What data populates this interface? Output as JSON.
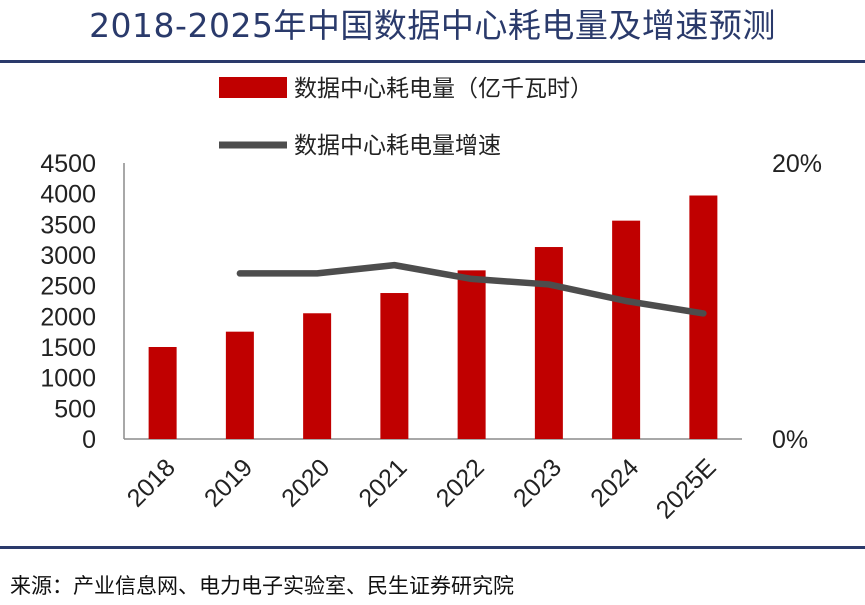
{
  "page": {
    "title": "2018-2025年中国数据中心耗电量及增速预测",
    "source": "来源：产业信息网、电力电子实验室、民生证券研究院"
  },
  "chart_data": {
    "type": "bar",
    "categories": [
      "2018",
      "2019",
      "2020",
      "2021",
      "2022",
      "2023",
      "2024",
      "2025E"
    ],
    "series": [
      {
        "name": "数据中心耗电量（亿千瓦时）",
        "type": "bar",
        "axis": "left",
        "color": "#c00000",
        "values": [
          1500,
          1750,
          2050,
          2380,
          2750,
          3130,
          3560,
          3970
        ]
      },
      {
        "name": "数据中心耗电量增速",
        "type": "line",
        "axis": "right",
        "color": "#4d4d4d",
        "values": [
          null,
          12.0,
          12.0,
          12.6,
          11.6,
          11.2,
          10.0,
          9.1
        ]
      }
    ],
    "left_axis": {
      "ylim": [
        0,
        4500
      ],
      "ticks": [
        "0",
        "500",
        "1000",
        "1500",
        "2000",
        "2500",
        "3000",
        "3500",
        "4000",
        "4500"
      ]
    },
    "right_axis": {
      "ylim": [
        0,
        20
      ],
      "ticks": [
        "0%",
        "20%"
      ]
    },
    "legend": {
      "placement": "top-center"
    },
    "grid": false
  }
}
